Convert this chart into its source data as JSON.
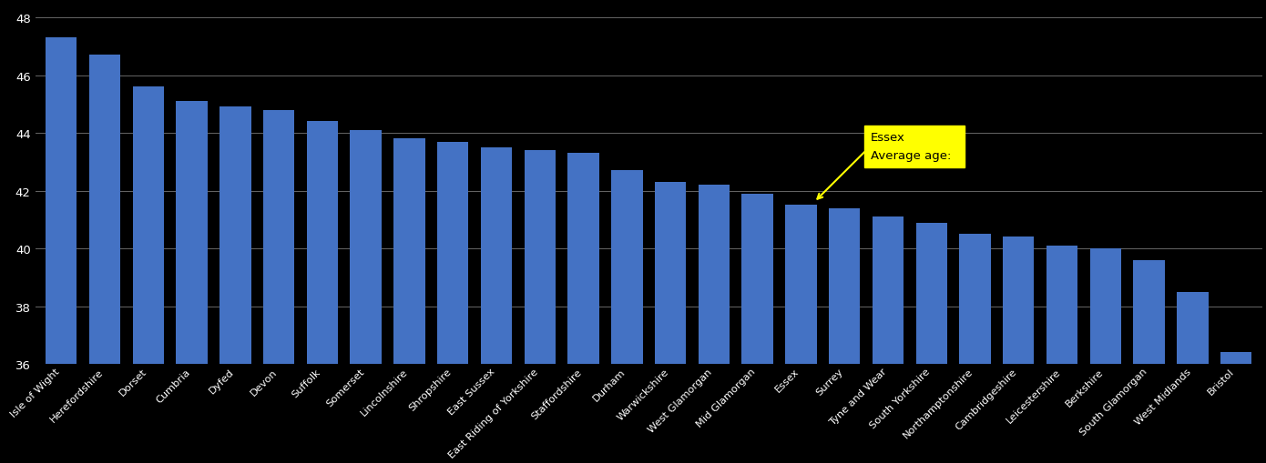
{
  "categories": [
    "Isle of Wight",
    "Herefordshire",
    "Dorset",
    "Cumbria",
    "Dyfed",
    "Devon",
    "Suffolk",
    "Somerset",
    "Lincolnshire",
    "Shropshire",
    "East Sussex",
    "East Riding of Yorkshire",
    "Staffordshire",
    "Durham",
    "Warwickshire",
    "West Glamorgan",
    "Mid Glamorgan",
    "Essex",
    "Surrey",
    "Tyne and Wear",
    "South Yorkshire",
    "Northamptonshire",
    "Cambridgeshire",
    "Leicestershire",
    "Berkshire",
    "South Glamorgan",
    "West Midlands",
    "Bristol"
  ],
  "values": [
    47.3,
    46.7,
    45.6,
    45.1,
    44.9,
    44.8,
    44.4,
    44.1,
    43.8,
    43.7,
    43.5,
    43.4,
    43.3,
    42.7,
    42.3,
    42.2,
    41.9,
    41.5,
    41.4,
    41.1,
    40.9,
    40.5,
    40.4,
    40.1,
    40.0,
    39.6,
    38.5,
    36.4
  ],
  "highlight_index": 17,
  "highlight_label": "Essex",
  "highlight_value": 41.5,
  "bar_color": "#4472C4",
  "background_color": "#000000",
  "text_color": "#ffffff",
  "annotation_bg": "#ffff00",
  "ylim_min": 36,
  "ylim_max": 48.5,
  "yticks": [
    36,
    38,
    40,
    42,
    44,
    46,
    48
  ]
}
